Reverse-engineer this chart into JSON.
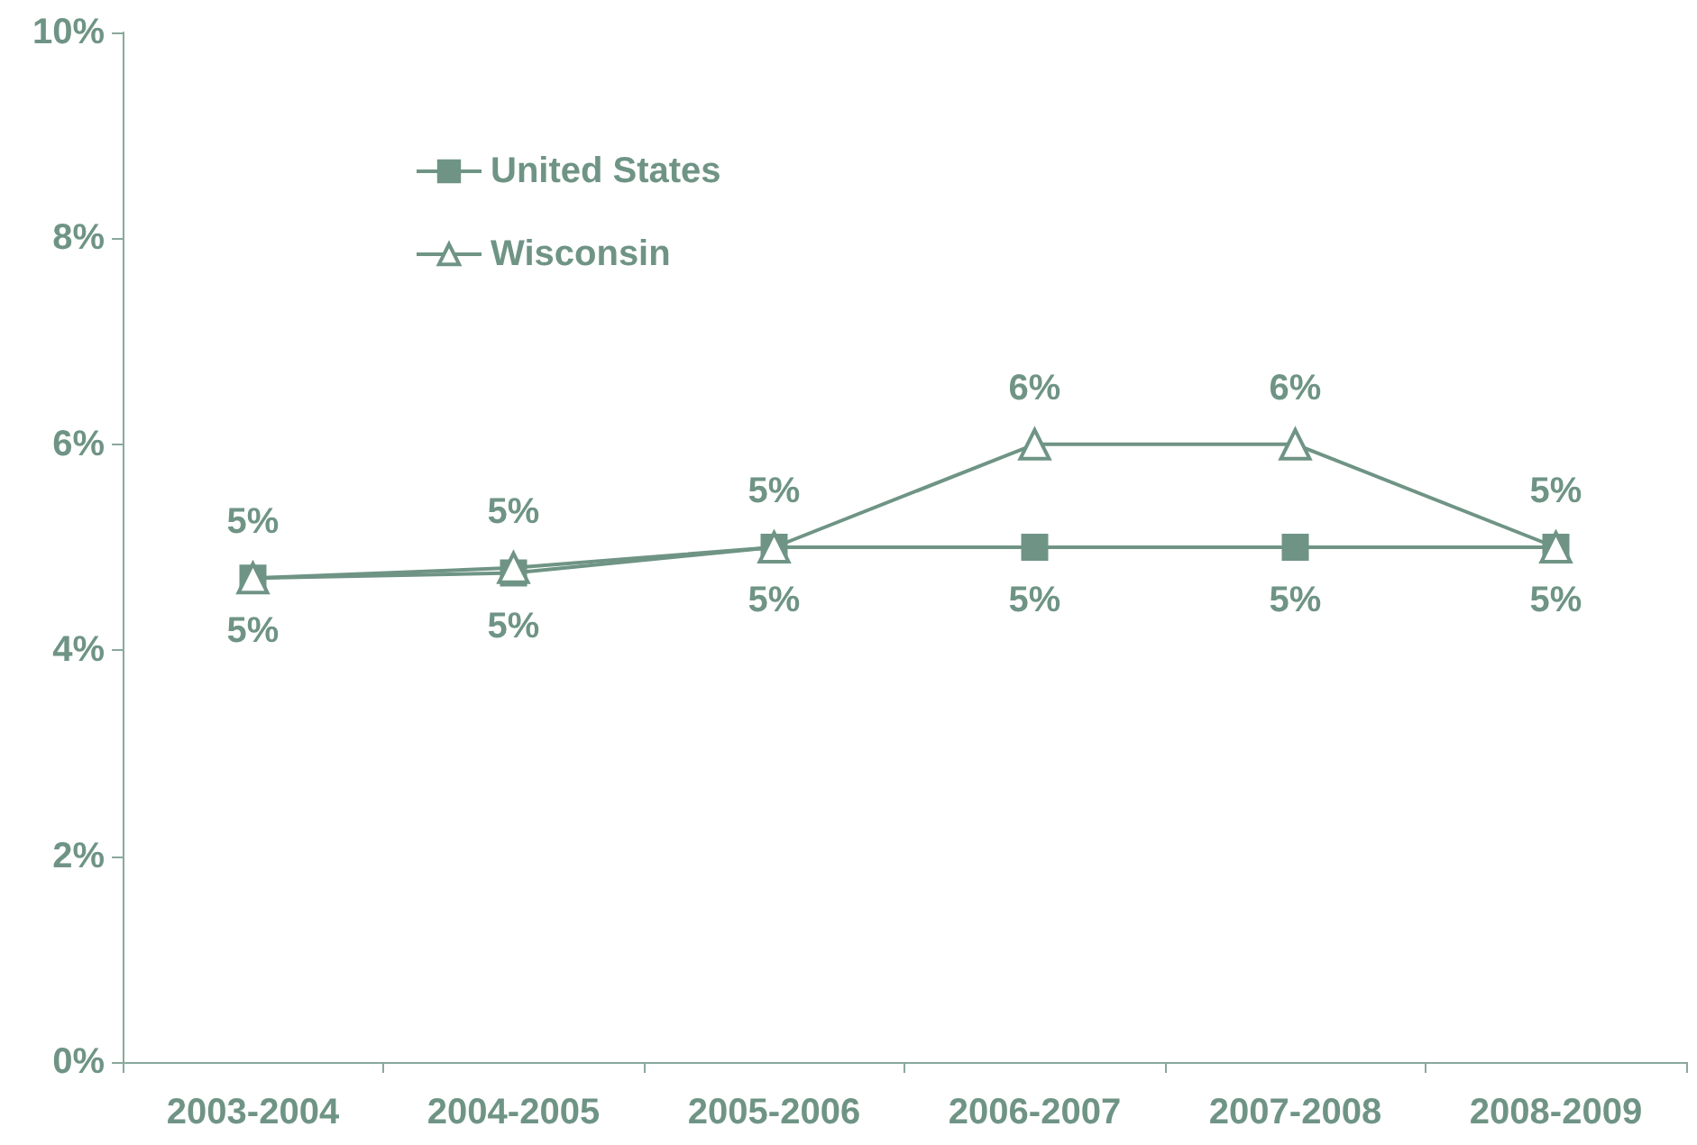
{
  "chart_data": {
    "type": "line",
    "categories": [
      "2003-2004",
      "2004-2005",
      "2005-2006",
      "2006-2007",
      "2007-2008",
      "2008-2009"
    ],
    "series": [
      {
        "name": "United States",
        "color": "#6f9485",
        "marker": "square",
        "values": [
          4.7,
          4.75,
          5,
          5,
          5,
          5
        ],
        "value_labels": [
          "5%",
          "5%",
          "5%",
          "5%",
          "5%",
          "5%"
        ]
      },
      {
        "name": "Wisconsin",
        "color": "#6f9485",
        "marker": "triangle",
        "values": [
          4.7,
          4.8,
          5,
          6,
          6,
          5
        ],
        "value_labels": [
          "5%",
          "5%",
          "5%",
          "6%",
          "6%",
          "5%"
        ]
      }
    ],
    "ylim": [
      0,
      10
    ],
    "yticks": [
      {
        "value": 0,
        "label": "0%"
      },
      {
        "value": 2,
        "label": "2%"
      },
      {
        "value": 4,
        "label": "4%"
      },
      {
        "value": 6,
        "label": "6%"
      },
      {
        "value": 8,
        "label": "8%"
      },
      {
        "value": 10,
        "label": "10%"
      }
    ],
    "grid": false,
    "legend": "top left"
  }
}
